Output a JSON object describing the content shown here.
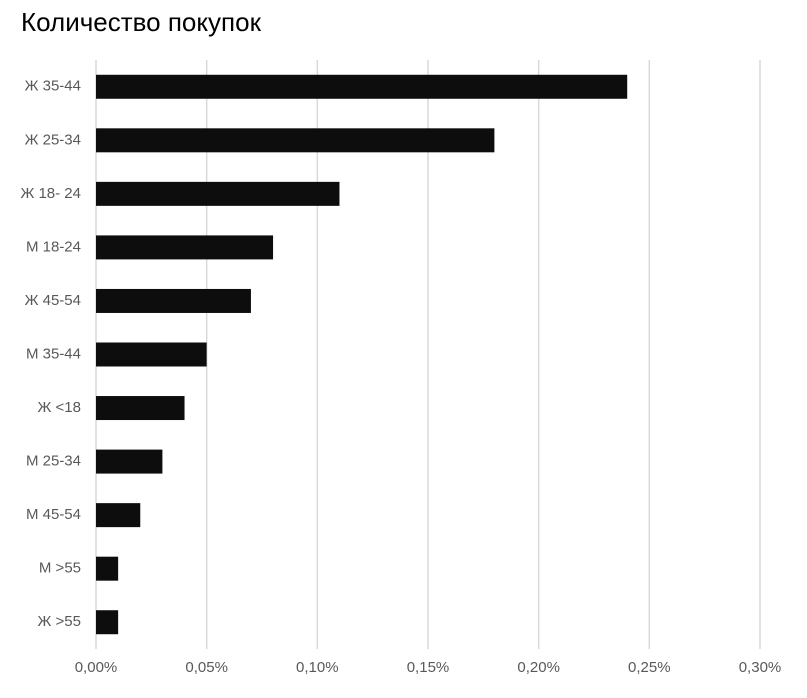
{
  "chart_data": {
    "type": "bar",
    "title": "Количество покупок",
    "categories": [
      "Ж 35-44",
      "Ж 25-34",
      "Ж 18- 24",
      "М 18-24",
      "Ж 45-54",
      "М 35-44",
      "Ж <18",
      "М 25-34",
      "М 45-54",
      "М >55",
      "Ж >55"
    ],
    "values": [
      0.24,
      0.18,
      0.11,
      0.08,
      0.07,
      0.05,
      0.04,
      0.03,
      0.02,
      0.01,
      0.01
    ],
    "color": "#0d0d0d",
    "xlim": [
      0,
      0.3
    ],
    "xticks": [
      {
        "value": 0,
        "label": "0,00%"
      },
      {
        "value": 0.05,
        "label": "0,05%"
      },
      {
        "value": 0.1,
        "label": "0,10%"
      },
      {
        "value": 0.15,
        "label": "0,15%"
      },
      {
        "value": 0.2,
        "label": "0,20%"
      },
      {
        "value": 0.25,
        "label": "0,25%"
      },
      {
        "value": 0.3,
        "label": "0,30%"
      }
    ],
    "grid": true
  }
}
